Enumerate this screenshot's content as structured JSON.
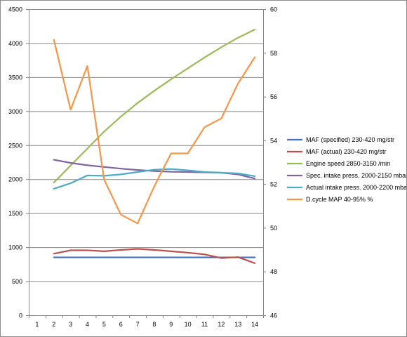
{
  "chart_data": {
    "type": "line",
    "categories": [
      "1",
      "2",
      "3",
      "4",
      "5",
      "6",
      "7",
      "8",
      "9",
      "10",
      "11",
      "12",
      "13",
      "14"
    ],
    "y_left": {
      "min": 0,
      "max": 4500,
      "ticks": [
        "0",
        "500",
        "1000",
        "1500",
        "2000",
        "2500",
        "3000",
        "3500",
        "4000",
        "4500"
      ]
    },
    "y_right": {
      "min": 46,
      "max": 60,
      "ticks": [
        "46",
        "48",
        "50",
        "52",
        "54",
        "56",
        "58",
        "60"
      ]
    },
    "grid": "horizontal",
    "legend_position": "right",
    "series": [
      {
        "name": "MAF (specified) 230-420  mg/str",
        "axis": "left",
        "color": "#4472C4",
        "values": [
          null,
          850,
          850,
          850,
          850,
          850,
          850,
          850,
          850,
          850,
          850,
          850,
          850,
          850
        ]
      },
      {
        "name": "MAF (actual) 230-420  mg/str",
        "axis": "left",
        "color": "#C0504D",
        "values": [
          null,
          905,
          955,
          955,
          940,
          960,
          975,
          960,
          940,
          920,
          895,
          840,
          855,
          765
        ]
      },
      {
        "name": "Engine speed 2850-3150  /min",
        "axis": "left",
        "color": "#9BBB59",
        "values": [
          null,
          1950,
          2200,
          2450,
          2700,
          2920,
          3120,
          3300,
          3470,
          3630,
          3790,
          3940,
          4080,
          4200
        ]
      },
      {
        "name": "Spec. intake press. 2000-2150  mbar",
        "axis": "left",
        "color": "#8064A2",
        "values": [
          null,
          2285,
          2240,
          2205,
          2180,
          2155,
          2135,
          2120,
          2110,
          2105,
          2100,
          2095,
          2070,
          2010
        ]
      },
      {
        "name": "Actual intake press. 2000-2200  mbar",
        "axis": "left",
        "color": "#4BACC6",
        "values": [
          null,
          1860,
          1940,
          2055,
          2050,
          2070,
          2105,
          2140,
          2150,
          2130,
          2105,
          2095,
          2085,
          2045
        ]
      },
      {
        "name": "D.cycle MAP 40-95% %",
        "axis": "right",
        "color": "#F79646",
        "values": [
          null,
          58.6,
          55.4,
          57.4,
          52.2,
          50.6,
          50.2,
          51.9,
          53.4,
          53.4,
          54.6,
          55.0,
          56.6,
          57.8
        ]
      }
    ]
  }
}
